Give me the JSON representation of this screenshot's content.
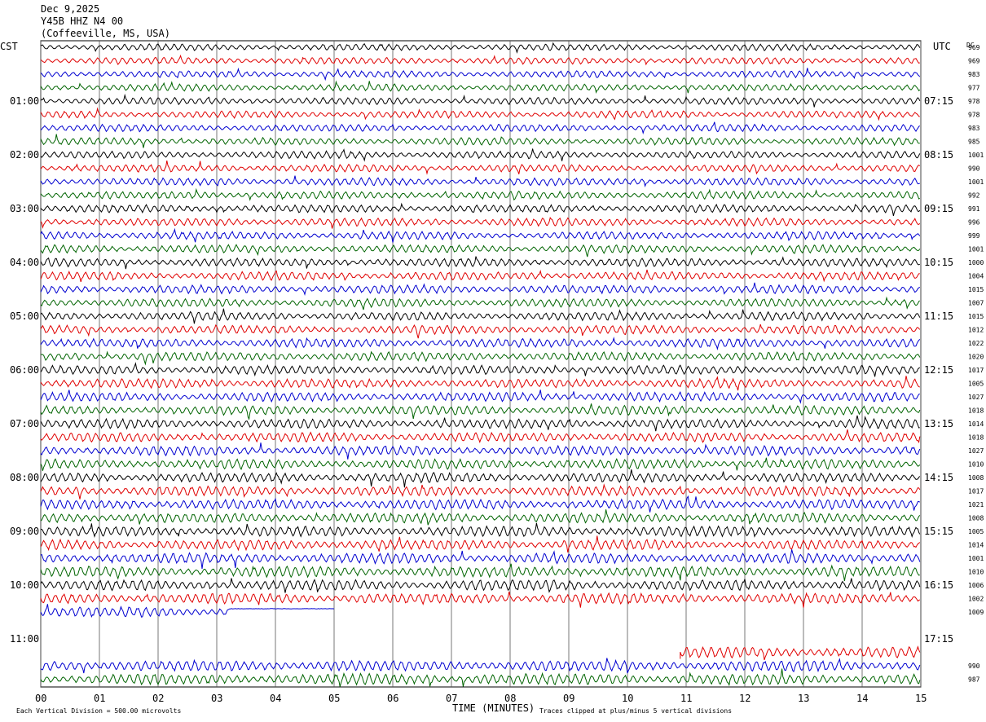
{
  "header": {
    "date": "Dec 9,2025",
    "station": "Y45B HHZ N4 00",
    "location": "(Coffeeville, MS, USA)"
  },
  "left_axis_label": "CST",
  "right_axis_label": "UTC",
  "dc_label": "DC",
  "footer": {
    "scale_note": "Each Vertical Division =  500.00 microvolts",
    "xlabel": "TIME (MINUTES)",
    "clip_note": "Traces clipped at plus/minus 5 vertical divisions"
  },
  "colors": {
    "trace_cycle": [
      "#000000",
      "#e00000",
      "#0000d0",
      "#006400"
    ],
    "grid": "#000000"
  },
  "chart_data": {
    "type": "line",
    "title": "Y45B HHZ N4 00",
    "xlabel": "TIME (MINUTES)",
    "xlim": [
      0,
      15
    ],
    "x_ticks": [
      "00",
      "01",
      "02",
      "03",
      "04",
      "05",
      "06",
      "07",
      "08",
      "09",
      "10",
      "11",
      "12",
      "13",
      "14",
      "15"
    ],
    "row_minutes": 15,
    "rows": 48,
    "left_hour_labels": [
      "01:00",
      "02:00",
      "03:00",
      "04:00",
      "05:00",
      "06:00",
      "07:00",
      "08:00",
      "09:00",
      "10:00",
      "11:00"
    ],
    "right_hour_labels": [
      "07:15",
      "08:15",
      "09:15",
      "10:15",
      "11:15",
      "12:15",
      "13:15",
      "14:15",
      "15:15",
      "16:15",
      "17:15"
    ],
    "dc_offsets": [
      "969",
      "969",
      "983",
      "977",
      "978",
      "978",
      "983",
      "985",
      "1001",
      "990",
      "1001",
      "992",
      "991",
      "996",
      "999",
      "1001",
      "1000",
      "1004",
      "1015",
      "1007",
      "1015",
      "1012",
      "1022",
      "1020",
      "1017",
      "1005",
      "1027",
      "1018",
      "1014",
      "1018",
      "1027",
      "1010",
      "1008",
      "1017",
      "1021",
      "1008",
      "1005",
      "1014",
      "1001",
      "1010",
      "1006",
      "1002",
      "1009",
      "",
      "",
      "",
      "990",
      "987"
    ],
    "gaps": [
      {
        "row": 42,
        "data_end_minute": 5.0,
        "flat_from_minute": 3.2
      },
      {
        "row": 43,
        "empty": true
      },
      {
        "row": 44,
        "empty": true
      },
      {
        "row": 45,
        "data_start_minute": 10.9
      }
    ]
  }
}
